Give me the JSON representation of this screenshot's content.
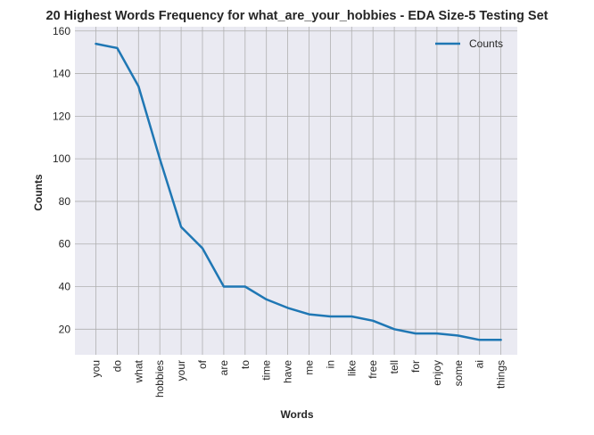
{
  "chart_data": {
    "type": "line",
    "title": "20 Highest Words Frequency for what_are_your_hobbies - EDA Size-5 Testing Set",
    "xlabel": "Words",
    "ylabel": "Counts",
    "categories": [
      "you",
      "do",
      "what",
      "hobbies",
      "your",
      "of",
      "are",
      "to",
      "time",
      "have",
      "me",
      "in",
      "like",
      "free",
      "tell",
      "for",
      "enjoy",
      "some",
      "ai",
      "things"
    ],
    "series": [
      {
        "name": "Counts",
        "values": [
          154,
          152,
          134,
          100,
          68,
          58,
          40,
          40,
          34,
          30,
          27,
          26,
          26,
          24,
          20,
          18,
          18,
          17,
          15,
          15
        ],
        "color": "#1f77b4"
      }
    ],
    "yticks": [
      20,
      40,
      60,
      80,
      100,
      120,
      140,
      160
    ],
    "ylim": [
      8,
      162
    ],
    "grid": true,
    "legend_position": "top-right",
    "background_color": "#eaeaf2",
    "grid_color": "#b0b0b0"
  }
}
